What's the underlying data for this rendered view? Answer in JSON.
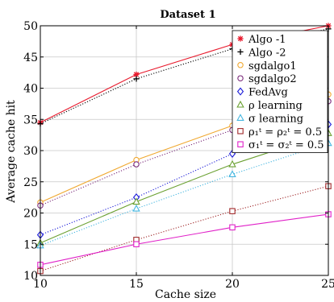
{
  "chart_data": {
    "type": "line",
    "title": "Dataset 1",
    "xlabel": "Cache size",
    "ylabel": "Average cache hit",
    "x": [
      10,
      15,
      20,
      25
    ],
    "xlim": [
      10,
      25
    ],
    "ylim": [
      10,
      50
    ],
    "xticks": [
      10,
      15,
      20,
      25
    ],
    "yticks": [
      10,
      15,
      20,
      25,
      30,
      35,
      40,
      45,
      50
    ],
    "grid": true,
    "legend_position": "top-right",
    "series": [
      {
        "name": "Algo -1",
        "values": [
          34.5,
          42.2,
          47.0,
          50.0
        ],
        "color": "#e8192c",
        "marker": "star",
        "dash": "solid"
      },
      {
        "name": "Algo -2",
        "values": [
          34.3,
          41.5,
          46.3,
          49.5
        ],
        "color": "#000000",
        "marker": "plus",
        "dash": "dotted"
      },
      {
        "name": "sgdalgo1",
        "values": [
          21.7,
          28.5,
          34.0,
          39.0
        ],
        "color": "#f0a830",
        "marker": "circle",
        "dash": "solid"
      },
      {
        "name": "sgdalgo2",
        "values": [
          21.2,
          27.8,
          33.3,
          37.9
        ],
        "color": "#7a2a7a",
        "marker": "circle",
        "dash": "dotted"
      },
      {
        "name": "FedAvg",
        "values": [
          16.5,
          22.5,
          29.5,
          34.2
        ],
        "color": "#1a1ad8",
        "marker": "diamond",
        "dash": "dotted"
      },
      {
        "name": "ρ learning",
        "values": [
          15.2,
          21.8,
          27.8,
          32.8
        ],
        "color": "#6aa030",
        "marker": "triangle",
        "dash": "solid"
      },
      {
        "name": "σ learning",
        "values": [
          14.8,
          20.7,
          26.2,
          31.2
        ],
        "color": "#45b6e0",
        "marker": "triangle",
        "dash": "dotted"
      },
      {
        "name": "ρ₁ᵗ = ρ₂ᵗ = 0.5",
        "values": [
          10.7,
          15.7,
          20.3,
          24.3
        ],
        "color": "#a0282a",
        "marker": "square",
        "dash": "dotted"
      },
      {
        "name": "σ₁ᵗ = σ₂ᵗ = 0.5",
        "values": [
          11.7,
          15.0,
          17.7,
          19.8
        ],
        "color": "#e020c8",
        "marker": "square",
        "dash": "solid"
      }
    ]
  }
}
